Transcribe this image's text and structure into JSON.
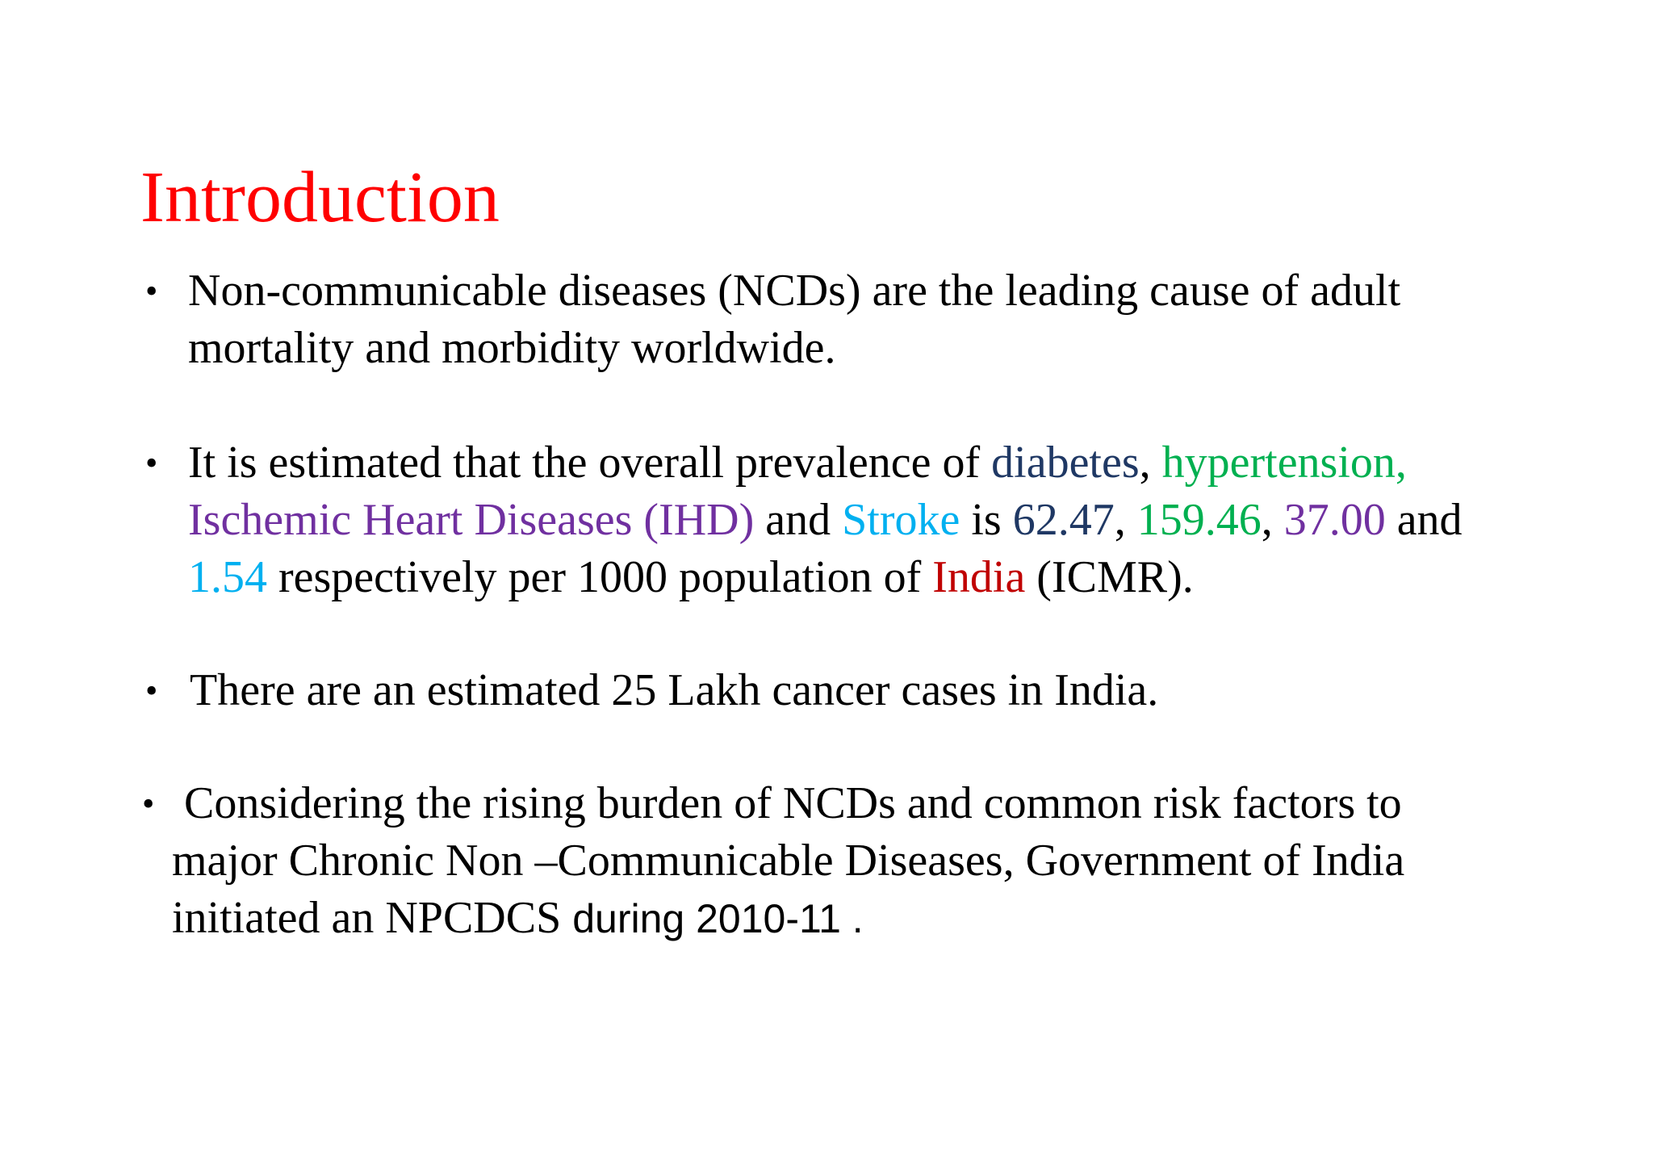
{
  "slide": {
    "title": "Introduction",
    "bullet_glyph": "•",
    "bullets": [
      {
        "lines": [
          "Non-communicable diseases (NCDs)  are the leading cause of adult",
          "mortality and morbidity worldwide."
        ]
      },
      {
        "line1": {
          "t1": "It is estimated that the overall  prevalence of ",
          "diabetes": "diabetes",
          "comma1": ", ",
          "hypertension": "hypertension,"
        },
        "line2": {
          "ihd": "Ischemic Heart  Diseases (IHD)",
          "and1": " and ",
          "stroke": "Stroke",
          "is": " is ",
          "v1": "62.47",
          "sep1": ",  ",
          "v2": "159.46",
          "sep2": ", ",
          "v3": "37.00",
          "and2": " and"
        },
        "line3": {
          "v4": "1.54",
          "t2": " respectively  per 1000 population of ",
          "india": "India",
          "t3": " (ICMR)."
        }
      },
      {
        "lines": [
          "There are an estimated 25 Lakh  cancer cases in India."
        ]
      },
      {
        "line1": "Considering the rising burden of NCDs   and common risk factors to",
        "line2": "major  Chronic Non –Communicable Diseases,  Government of India",
        "line3_serif": "initiated an NPCDCS ",
        "line3_sans": "during 2010-11  ."
      }
    ]
  },
  "colors": {
    "title": "#ff0000",
    "diabetes": "#1f3864",
    "hypertension": "#00b050",
    "ihd": "#7030a0",
    "stroke": "#00b0f0",
    "india": "#c00000"
  }
}
